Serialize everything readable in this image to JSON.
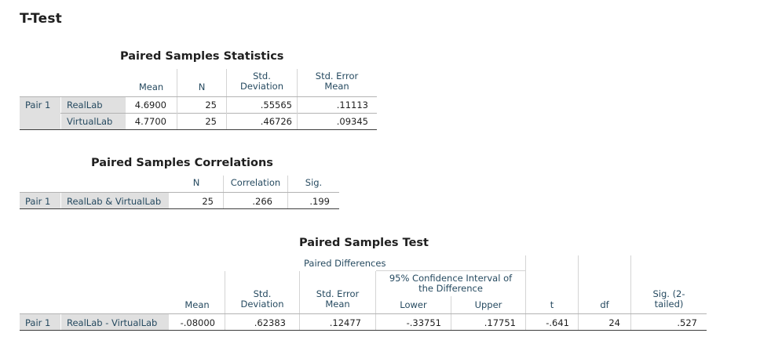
{
  "heading": "T-Test",
  "stats": {
    "title": "Paired Samples Statistics",
    "headers": {
      "mean": "Mean",
      "n": "N",
      "std_dev": "Std.\nDeviation",
      "sem": "Std. Error\nMean"
    },
    "pair": "Pair 1",
    "rows": [
      {
        "label": "RealLab",
        "mean": "4.6900",
        "n": "25",
        "std_dev": ".55565",
        "sem": ".11113"
      },
      {
        "label": "VirtualLab",
        "mean": "4.7700",
        "n": "25",
        "std_dev": ".46726",
        "sem": ".09345"
      }
    ]
  },
  "corr": {
    "title": "Paired Samples Correlations",
    "headers": {
      "n": "N",
      "correlation": "Correlation",
      "sig": "Sig."
    },
    "pair": "Pair 1",
    "row": {
      "label": "RealLab & VirtualLab",
      "n": "25",
      "correlation": ".266",
      "sig": ".199"
    }
  },
  "test": {
    "title": "Paired Samples Test",
    "headers": {
      "paired_differences": "Paired Differences",
      "ci": "95% Confidence Interval of\nthe Difference",
      "mean": "Mean",
      "std_dev": "Std.\nDeviation",
      "sem": "Std. Error\nMean",
      "lower": "Lower",
      "upper": "Upper",
      "t": "t",
      "df": "df",
      "sig": "Sig. (2-\ntailed)"
    },
    "pair": "Pair 1",
    "row": {
      "label": "RealLab - VirtualLab",
      "mean": "-.08000",
      "std_dev": ".62383",
      "sem": ".12477",
      "lower": "-.33751",
      "upper": ".17751",
      "t": "-.641",
      "df": "24",
      "sig": ".527"
    }
  }
}
